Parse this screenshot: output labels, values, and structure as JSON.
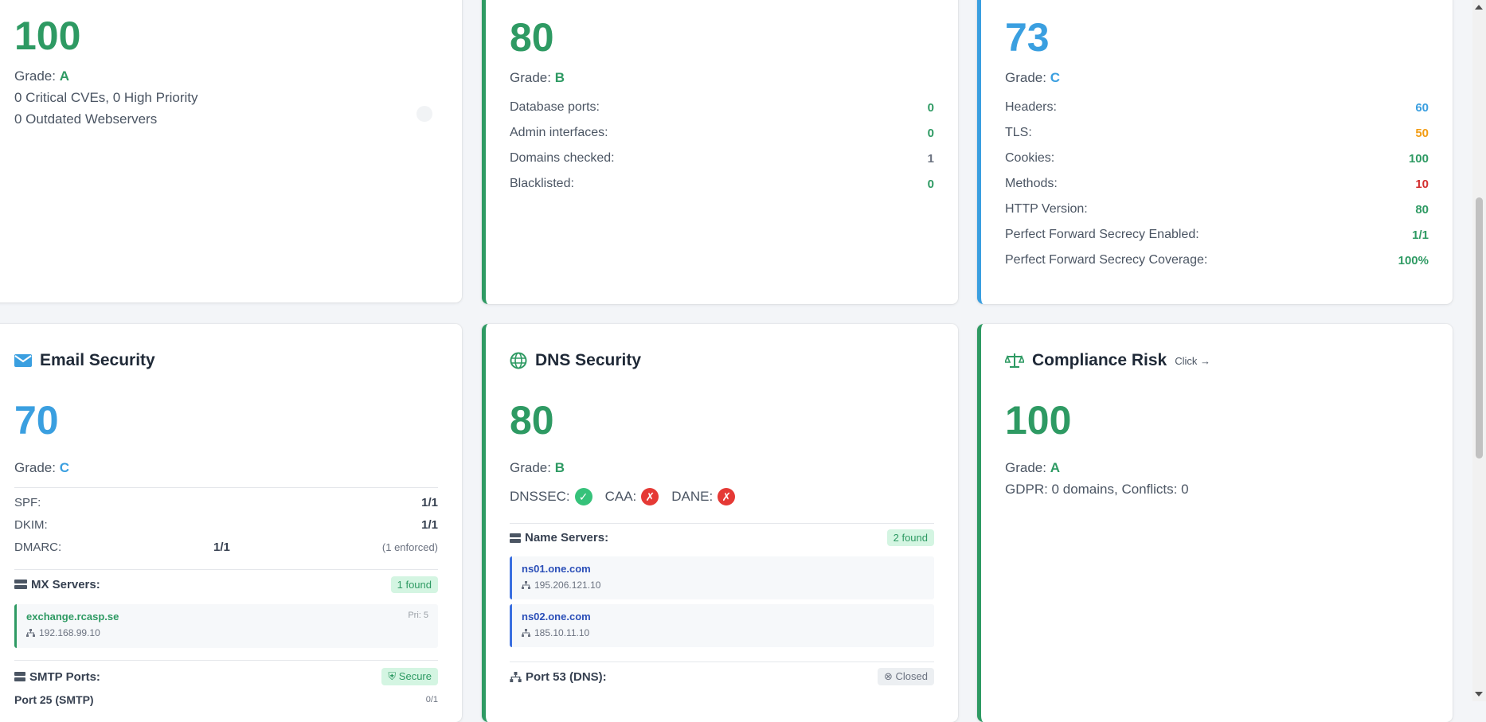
{
  "vuln_card": {
    "score": "100",
    "grade_label": "Grade:",
    "grade": "A",
    "line1": "0 Critical CVEs, 0 High Priority",
    "line2": "0 Outdated Webservers"
  },
  "exposure_card": {
    "score": "80",
    "grade_label": "Grade:",
    "grade": "B",
    "rows": [
      {
        "label": "Database ports:",
        "value": "0"
      },
      {
        "label": "Admin interfaces:",
        "value": "0"
      },
      {
        "label": "Domains checked:",
        "value": "1"
      },
      {
        "label": "Blacklisted:",
        "value": "0"
      }
    ]
  },
  "web_card": {
    "score": "73",
    "grade_label": "Grade:",
    "grade": "C",
    "rows": [
      {
        "label": "Headers:",
        "value": "60"
      },
      {
        "label": "TLS:",
        "value": "50"
      },
      {
        "label": "Cookies:",
        "value": "100"
      },
      {
        "label": "Methods:",
        "value": "10"
      },
      {
        "label": "HTTP Version:",
        "value": "80"
      },
      {
        "label": "Perfect Forward Secrecy Enabled:",
        "value": "1/1"
      },
      {
        "label": "Perfect Forward Secrecy Coverage:",
        "value": "100%"
      }
    ]
  },
  "email_card": {
    "title": "Email Security",
    "score": "70",
    "grade_label": "Grade:",
    "grade": "C",
    "spf_label": "SPF:",
    "spf_value": "1/1",
    "dkim_label": "DKIM:",
    "dkim_value": "1/1",
    "dmarc_label": "DMARC:",
    "dmarc_value": "1/1",
    "dmarc_note": "(1 enforced)",
    "mx_label": "MX Servers:",
    "mx_badge": "1 found",
    "mx_host": "exchange.rcasp.se",
    "mx_priority": "Pri: 5",
    "mx_ip": "192.168.99.10",
    "smtp_label": "SMTP Ports:",
    "smtp_badge": "Secure",
    "smtp_row_label": "Port 25 (SMTP)",
    "smtp_row_value": "0/1"
  },
  "dns_card": {
    "title": "DNS Security",
    "score": "80",
    "grade_label": "Grade:",
    "grade": "B",
    "dnssec_label": "DNSSEC:",
    "dnssec_mark": "✓",
    "caa_label": "CAA:",
    "caa_mark": "✗",
    "dane_label": "DANE:",
    "dane_mark": "✗",
    "ns_label": "Name Servers:",
    "ns_badge": "2 found",
    "ns1_host": "ns01.one.com",
    "ns1_ip": "195.206.121.10",
    "ns2_host": "ns02.one.com",
    "ns2_ip": "185.10.11.10",
    "port53_label": "Port 53 (DNS):",
    "port53_badge": "Closed"
  },
  "compliance_card": {
    "title": "Compliance Risk",
    "click_label": "Click",
    "score": "100",
    "grade_label": "Grade:",
    "grade": "A",
    "line1": "GDPR: 0 domains, Conflicts: 0"
  },
  "colors": {
    "green": "#2e9a63",
    "blue": "#3a9fe0",
    "orange": "#f39c12",
    "red": "#d32f2f"
  }
}
